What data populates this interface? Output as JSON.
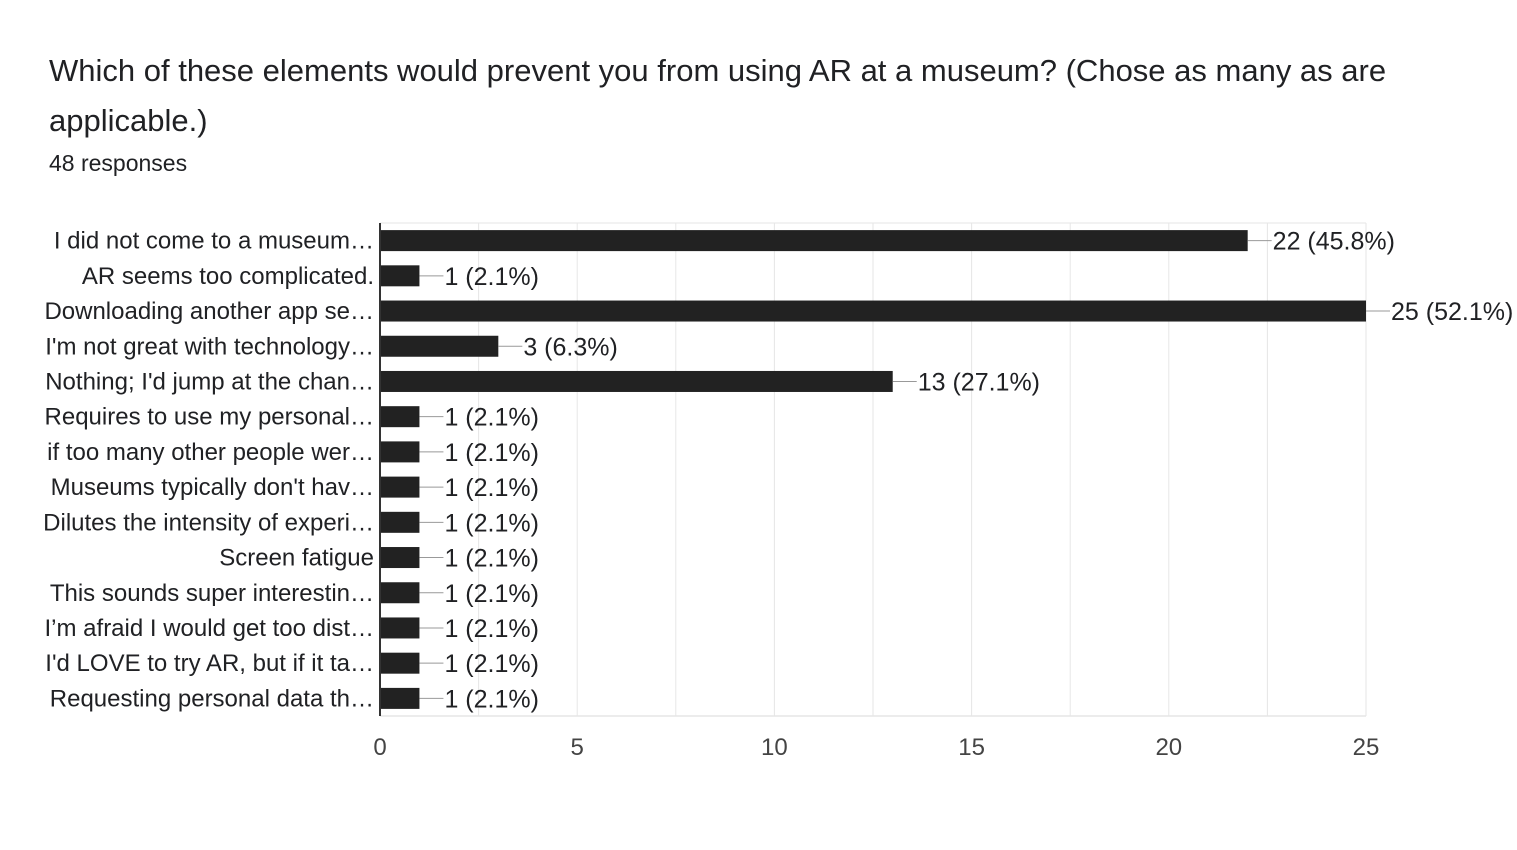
{
  "header": {
    "title": "Which of these elements would prevent you from using AR at a museum? (Chose as many as are applicable.)",
    "responses": "48 responses"
  },
  "chart_data": {
    "type": "bar",
    "orientation": "horizontal",
    "title": "Which of these elements would prevent you from using AR at a museum? (Chose as many as are applicable.)",
    "subtitle": "48 responses",
    "categories": [
      "I did not come to a museum…",
      "AR seems too complicated.",
      "Downloading another app se…",
      "I'm not great with technology…",
      "Nothing; I'd jump at the chan…",
      "Requires to use my personal…",
      "if too many other people wer…",
      "Museums typically don't hav…",
      "Dilutes the intensity of experi…",
      "Screen fatigue",
      "This sounds super interestin…",
      "I’m afraid I would get too dist…",
      "I'd LOVE to try AR, but if it ta…",
      "Requesting personal data th…"
    ],
    "values": [
      22,
      1,
      25,
      3,
      13,
      1,
      1,
      1,
      1,
      1,
      1,
      1,
      1,
      1
    ],
    "data_labels": [
      "22 (45.8%)",
      "1 (2.1%)",
      "25 (52.1%)",
      "3 (6.3%)",
      "13 (27.1%)",
      "1 (2.1%)",
      "1 (2.1%)",
      "1 (2.1%)",
      "1 (2.1%)",
      "1 (2.1%)",
      "1 (2.1%)",
      "1 (2.1%)",
      "1 (2.1%)",
      "1 (2.1%)"
    ],
    "xticks": [
      0,
      5,
      10,
      15,
      20,
      25
    ],
    "xlim": [
      0,
      25
    ],
    "grid": true,
    "bar_color": "#222222",
    "grid_color": "#e6e6e6",
    "axis_color": "#333333"
  }
}
